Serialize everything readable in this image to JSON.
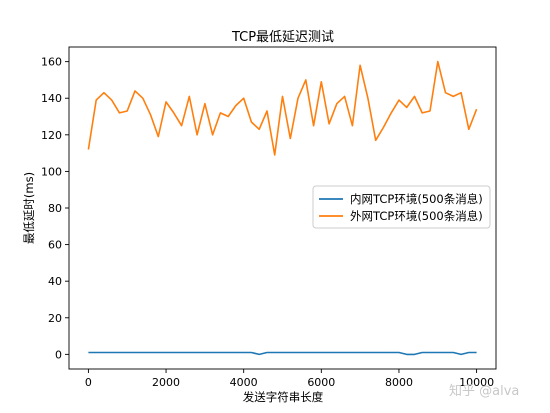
{
  "chart_data": {
    "type": "line",
    "title": "TCP最低延迟测试",
    "xlabel": "发送字符串长度",
    "ylabel": "最低延时(ms)",
    "xlim": [
      -500,
      10500
    ],
    "ylim": [
      -8,
      168
    ],
    "xticks": [
      0,
      2000,
      4000,
      6000,
      8000,
      10000
    ],
    "yticks": [
      0,
      20,
      40,
      60,
      80,
      100,
      120,
      140,
      160
    ],
    "legend": "center-right",
    "grid": false,
    "series": [
      {
        "name": "内网TCP环境(500条消息)",
        "color": "#1f77b4",
        "x": [
          0,
          200,
          400,
          600,
          800,
          1000,
          1200,
          1400,
          1600,
          1800,
          2000,
          2200,
          2400,
          2600,
          2800,
          3000,
          3200,
          3400,
          3600,
          3800,
          4000,
          4200,
          4400,
          4600,
          4800,
          5000,
          5200,
          5400,
          5600,
          5800,
          6000,
          6200,
          6400,
          6600,
          6800,
          7000,
          7200,
          7400,
          7600,
          7800,
          8000,
          8200,
          8400,
          8600,
          8800,
          9000,
          9200,
          9400,
          9600,
          9800,
          10000
        ],
        "y": [
          1,
          1,
          1,
          1,
          1,
          1,
          1,
          1,
          1,
          1,
          1,
          1,
          1,
          1,
          1,
          1,
          1,
          1,
          1,
          1,
          1,
          1,
          0,
          1,
          1,
          1,
          1,
          1,
          1,
          1,
          1,
          1,
          1,
          1,
          1,
          1,
          1,
          1,
          1,
          1,
          1,
          0,
          0,
          1,
          1,
          1,
          1,
          1,
          0,
          1,
          1
        ]
      },
      {
        "name": "外网TCP环境(500条消息)",
        "color": "#ff7f0e",
        "x": [
          0,
          200,
          400,
          600,
          800,
          1000,
          1200,
          1400,
          1600,
          1800,
          2000,
          2200,
          2400,
          2600,
          2800,
          3000,
          3200,
          3400,
          3600,
          3800,
          4000,
          4200,
          4400,
          4600,
          4800,
          5000,
          5200,
          5400,
          5600,
          5800,
          6000,
          6200,
          6400,
          6600,
          6800,
          7000,
          7200,
          7400,
          7600,
          7800,
          8000,
          8200,
          8400,
          8600,
          8800,
          9000,
          9200,
          9400,
          9600,
          9800,
          10000
        ],
        "y": [
          112,
          139,
          143,
          139,
          132,
          133,
          144,
          140,
          131,
          119,
          138,
          132,
          125,
          141,
          120,
          137,
          120,
          132,
          130,
          136,
          140,
          127,
          123,
          133,
          109,
          141,
          118,
          140,
          150,
          125,
          149,
          126,
          137,
          141,
          125,
          158,
          140,
          117,
          124,
          132,
          139,
          135,
          141,
          132,
          133,
          160,
          143,
          141,
          143,
          123,
          134
        ]
      }
    ]
  },
  "watermark": "知乎 @alva"
}
